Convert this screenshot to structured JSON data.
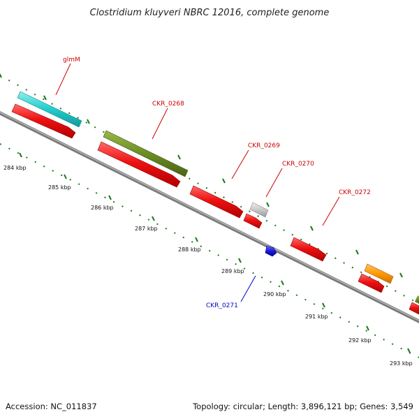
{
  "title": "Clostridium kluyveri NBRC 12016, complete genome",
  "footer": {
    "accession": "Accession: NC_011837",
    "summary": "Topology: circular; Length: 3,896,121 bp; Genes: 3,549"
  },
  "ticks": [
    {
      "label": "284 kbp"
    },
    {
      "label": "285 kbp"
    },
    {
      "label": "286 kbp"
    },
    {
      "label": "287 kbp"
    },
    {
      "label": "288 kbp"
    },
    {
      "label": "289 kbp"
    },
    {
      "label": "290 kbp"
    },
    {
      "label": "291 kbp"
    },
    {
      "label": "292 kbp"
    },
    {
      "label": "293 kbp"
    }
  ],
  "features": [
    {
      "label": "glmM",
      "label_color": "#cc0000"
    },
    {
      "label": "CKR_0268",
      "label_color": "#cc0000"
    },
    {
      "label": "CKR_0269",
      "label_color": "#cc0000"
    },
    {
      "label": "CKR_0270",
      "label_color": "#cc0000"
    },
    {
      "label": "CKR_0272",
      "label_color": "#cc0000"
    },
    {
      "label": "CKR_0271",
      "label_color": "#0000cc"
    }
  ],
  "colors": {
    "cds": "#ee1111",
    "glmM_gene": "#22cccc",
    "CKR_0268_gene": "#6b8e23",
    "CKR_0270_gene": "#c8c8c8",
    "CKR_0271_cds": "#1a1add",
    "orange_gene": "#ff9900",
    "backbone": "#8a8a8a",
    "tick": "#1a7a1a"
  }
}
